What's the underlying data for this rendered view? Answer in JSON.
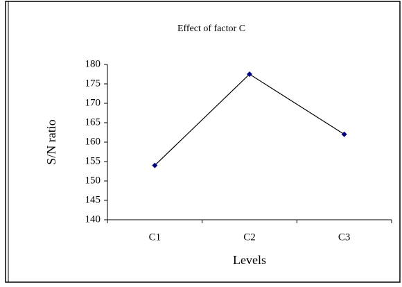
{
  "chart_data": {
    "type": "line",
    "title": "Effect of factor C",
    "x_label": "Levels",
    "y_label": "S/N ratio",
    "categories": [
      "C1",
      "C2",
      "C3"
    ],
    "values": [
      154,
      177.5,
      162
    ],
    "color": "#000080",
    "line_color": "#000000",
    "ylim": [
      140,
      180
    ],
    "yticks": [
      140,
      145,
      150,
      155,
      160,
      165,
      170,
      175,
      180
    ]
  }
}
